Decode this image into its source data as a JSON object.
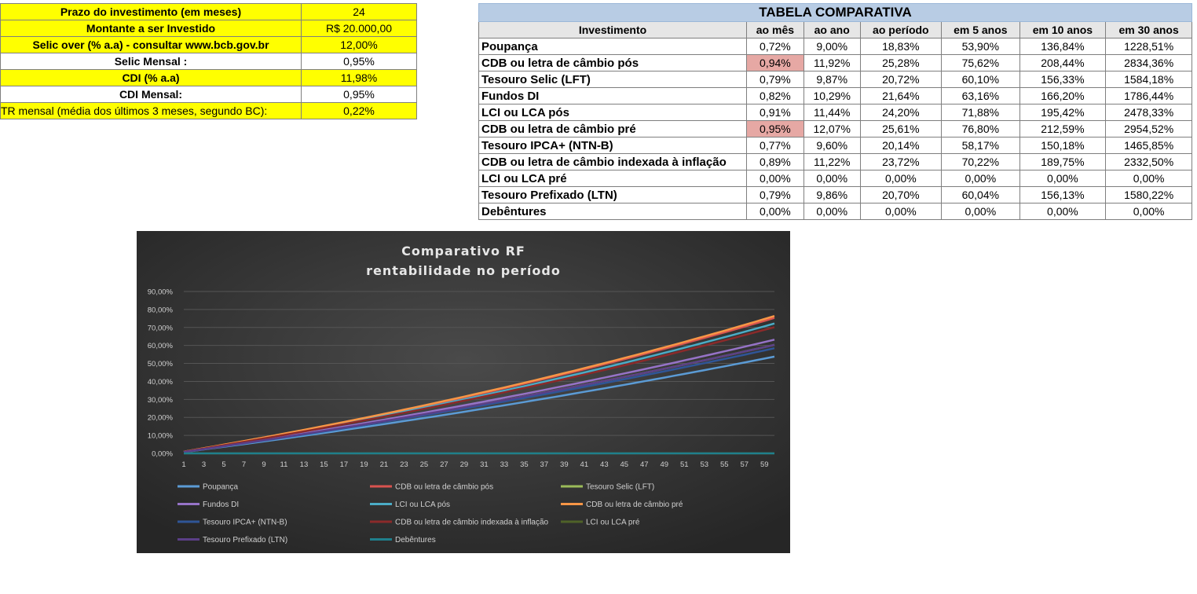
{
  "params": [
    {
      "label": "Prazo do investimento (em meses)",
      "value": "24",
      "style": "yel",
      "plain": false
    },
    {
      "label": "Montante a ser Investido",
      "value": "R$ 20.000,00",
      "style": "yel",
      "plain": false
    },
    {
      "label": "Selic over (% a.a) - consultar www.bcb.gov.br",
      "value": "12,00%",
      "style": "yel",
      "plain": false
    },
    {
      "label": "Selic Mensal :",
      "value": "0,95%",
      "style": "wht",
      "plain": false
    },
    {
      "label": "CDI (% a.a)",
      "value": "11,98%",
      "style": "yel",
      "plain": false
    },
    {
      "label": "CDI Mensal:",
      "value": "0,95%",
      "style": "wht",
      "plain": false
    },
    {
      "label": "TR mensal (média dos últimos 3 meses, segundo BC):",
      "value": "0,22%",
      "style": "yel",
      "plain": true
    }
  ],
  "comparison": {
    "title": "TABELA COMPARATIVA",
    "headers": [
      "Investimento",
      "ao mês",
      "ao ano",
      "ao período",
      "em 5 anos",
      "em 10 anos",
      "em 30 anos"
    ],
    "highlight_color": "#e6a8a4",
    "rows": [
      {
        "name": "Poupança",
        "values": [
          "0,72%",
          "9,00%",
          "18,83%",
          "53,90%",
          "136,84%",
          "1228,51%"
        ],
        "highlight": false
      },
      {
        "name": "CDB ou letra de câmbio pós",
        "values": [
          "0,94%",
          "11,92%",
          "25,28%",
          "75,62%",
          "208,44%",
          "2834,36%"
        ],
        "highlight": true
      },
      {
        "name": "Tesouro Selic (LFT)",
        "values": [
          "0,79%",
          "9,87%",
          "20,72%",
          "60,10%",
          "156,33%",
          "1584,18%"
        ],
        "highlight": false
      },
      {
        "name": "Fundos DI",
        "values": [
          "0,82%",
          "10,29%",
          "21,64%",
          "63,16%",
          "166,20%",
          "1786,44%"
        ],
        "highlight": false
      },
      {
        "name": "LCI ou LCA pós",
        "values": [
          "0,91%",
          "11,44%",
          "24,20%",
          "71,88%",
          "195,42%",
          "2478,33%"
        ],
        "highlight": false
      },
      {
        "name": "CDB ou letra de câmbio pré",
        "values": [
          "0,95%",
          "12,07%",
          "25,61%",
          "76,80%",
          "212,59%",
          "2954,52%"
        ],
        "highlight": true
      },
      {
        "name": "Tesouro IPCA+ (NTN-B)",
        "values": [
          "0,77%",
          "9,60%",
          "20,14%",
          "58,17%",
          "150,18%",
          "1465,85%"
        ],
        "highlight": false
      },
      {
        "name": "CDB ou letra de câmbio indexada à inflação",
        "values": [
          "0,89%",
          "11,22%",
          "23,72%",
          "70,22%",
          "189,75%",
          "2332,50%"
        ],
        "highlight": false
      },
      {
        "name": "LCI ou LCA pré",
        "values": [
          "0,00%",
          "0,00%",
          "0,00%",
          "0,00%",
          "0,00%",
          "0,00%"
        ],
        "highlight": false
      },
      {
        "name": "Tesouro Prefixado (LTN)",
        "values": [
          "0,79%",
          "9,86%",
          "20,70%",
          "60,04%",
          "156,13%",
          "1580,22%"
        ],
        "highlight": false
      },
      {
        "name": "Debêntures",
        "values": [
          "0,00%",
          "0,00%",
          "0,00%",
          "0,00%",
          "0,00%",
          "0,00%"
        ],
        "highlight": false
      }
    ]
  },
  "chart_data": {
    "type": "line",
    "title": "Comparativo  RF",
    "subtitle": "rentabilidade  no  período",
    "x_tick_labels": [
      "1",
      "3",
      "5",
      "7",
      "9",
      "11",
      "13",
      "15",
      "17",
      "19",
      "21",
      "23",
      "25",
      "27",
      "29",
      "31",
      "33",
      "35",
      "37",
      "39",
      "41",
      "43",
      "45",
      "47",
      "49",
      "51",
      "53",
      "55",
      "57",
      "59"
    ],
    "x_range": [
      1,
      60
    ],
    "ylim": [
      0,
      90
    ],
    "y_tick_labels": [
      "0,00%",
      "10,00%",
      "20,00%",
      "30,00%",
      "40,00%",
      "50,00%",
      "60,00%",
      "70,00%",
      "80,00%",
      "90,00%"
    ],
    "grid": true,
    "legend_position": "bottom",
    "background": "#3a3a3a",
    "series": [
      {
        "name": "Poupança",
        "monthly_rate_pct": 0.72,
        "color": "#5b9bd5"
      },
      {
        "name": "CDB ou letra de câmbio pós",
        "monthly_rate_pct": 0.94,
        "color": "#d9534f"
      },
      {
        "name": "Tesouro Selic (LFT)",
        "monthly_rate_pct": 0.79,
        "color": "#9bbb59"
      },
      {
        "name": "Fundos DI",
        "monthly_rate_pct": 0.82,
        "color": "#9673c7"
      },
      {
        "name": "LCI ou LCA pós",
        "monthly_rate_pct": 0.91,
        "color": "#4bacc6"
      },
      {
        "name": "CDB ou letra de câmbio pré",
        "monthly_rate_pct": 0.95,
        "color": "#f79646"
      },
      {
        "name": "Tesouro IPCA+ (NTN-B)",
        "monthly_rate_pct": 0.77,
        "color": "#2f5597"
      },
      {
        "name": "CDB ou letra de câmbio indexada à inflação",
        "monthly_rate_pct": 0.89,
        "color": "#8b2a2a"
      },
      {
        "name": "LCI ou LCA pré",
        "monthly_rate_pct": 0.0,
        "color": "#4f6228"
      },
      {
        "name": "Tesouro Prefixado (LTN)",
        "monthly_rate_pct": 0.79,
        "color": "#5b3f87"
      },
      {
        "name": "Debêntures",
        "monthly_rate_pct": 0.0,
        "color": "#1f7f8c"
      }
    ]
  }
}
